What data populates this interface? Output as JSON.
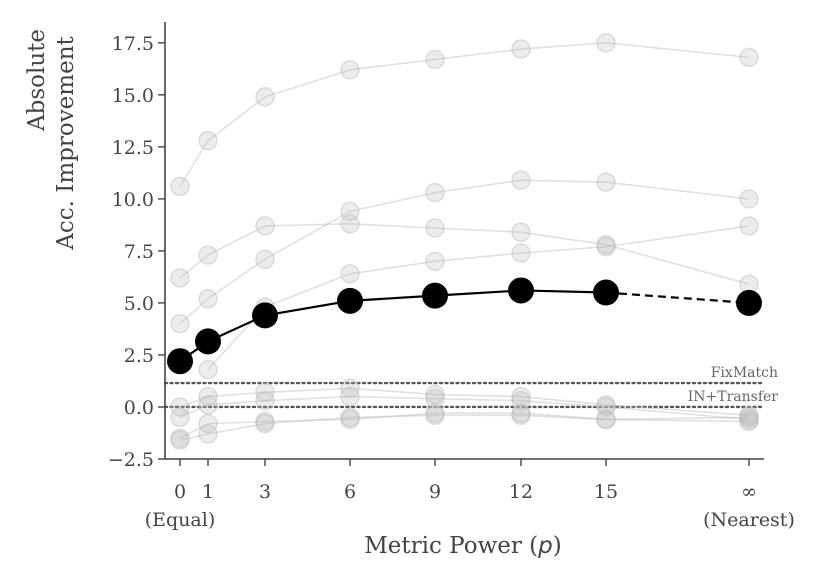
{
  "chart_data": {
    "type": "line",
    "xlabel": "Metric Power (",
    "xlabel_var": "p",
    "xlabel_end": ")",
    "ylabel_line1": "Absolute",
    "ylabel_line2": "Acc. Improvement",
    "ylim": [
      -2.5,
      18.5
    ],
    "yticks": [
      -2.5,
      0.0,
      2.5,
      5.0,
      7.5,
      10.0,
      12.5,
      15.0,
      17.5
    ],
    "yticklabels": [
      "−2.5",
      "0.0",
      "2.5",
      "5.0",
      "7.5",
      "10.0",
      "12.5",
      "15.0",
      "17.5"
    ],
    "x_categories": [
      "0",
      "1",
      "3",
      "6",
      "9",
      "12",
      "15",
      "∞"
    ],
    "x_sublabels": {
      "0": "(Equal)",
      "∞": "(Nearest)"
    },
    "reference_lines": [
      {
        "label": "FixMatch",
        "y": 1.15,
        "style": "dotted"
      },
      {
        "label": "IN+Transfer",
        "y": 0.0,
        "style": "dotted"
      }
    ],
    "main_series": {
      "x": [
        "0",
        "1",
        "3",
        "6",
        "9",
        "12",
        "15",
        "∞"
      ],
      "values": [
        2.2,
        3.15,
        4.4,
        5.1,
        5.35,
        5.6,
        5.5,
        5.0
      ],
      "color": "#000000",
      "dashed_last_segment": true
    },
    "background_series": [
      {
        "values": [
          10.6,
          12.8,
          14.9,
          16.2,
          16.7,
          17.2,
          17.5,
          16.8
        ]
      },
      {
        "values": [
          6.2,
          7.3,
          8.7,
          8.8,
          8.6,
          8.4,
          7.8,
          5.9
        ]
      },
      {
        "values": [
          4.0,
          5.2,
          7.1,
          9.4,
          10.3,
          10.9,
          10.8,
          10.0
        ]
      },
      {
        "values": [
          null,
          1.8,
          4.8,
          6.4,
          7.0,
          7.4,
          7.7,
          8.7
        ]
      },
      {
        "values": [
          0.0,
          0.5,
          0.7,
          0.9,
          0.6,
          0.5,
          0.1,
          -0.4
        ]
      },
      {
        "values": [
          -0.5,
          0.1,
          0.3,
          0.5,
          0.4,
          0.3,
          0.0,
          -0.6
        ]
      },
      {
        "values": [
          -1.6,
          -1.3,
          -0.8,
          -0.5,
          -0.4,
          -0.4,
          -0.6,
          -0.5
        ]
      },
      {
        "values": [
          -1.5,
          -0.8,
          -0.7,
          -0.6,
          -0.3,
          -0.3,
          -0.6,
          -0.7
        ]
      }
    ],
    "background_color": "#bbbbbb"
  }
}
